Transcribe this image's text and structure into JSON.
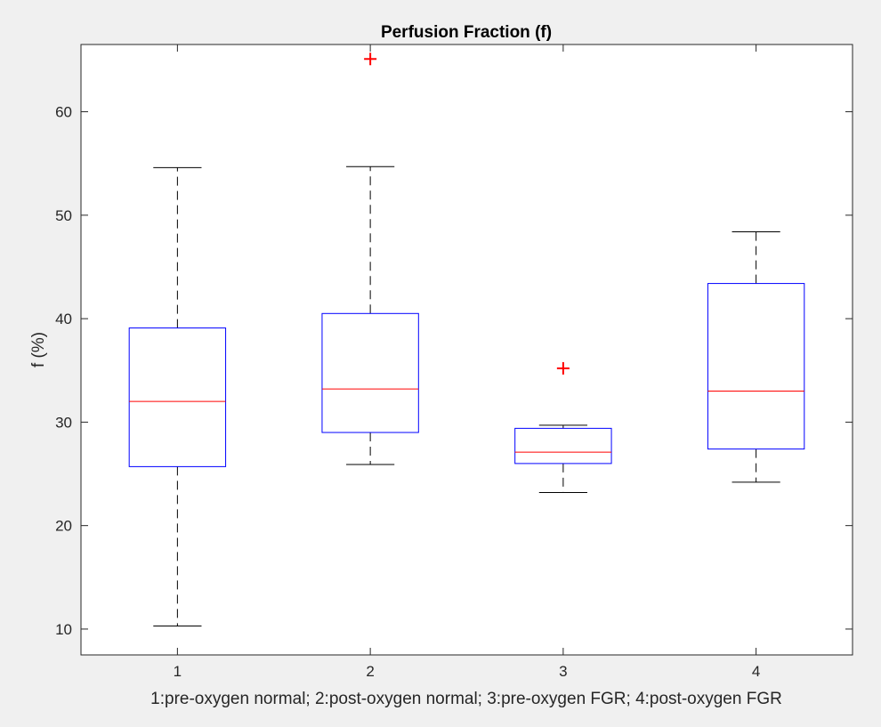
{
  "chart_data": {
    "type": "boxplot",
    "title": "Perfusion Fraction (f)",
    "xlabel": "1:pre-oxygen normal; 2:post-oxygen normal; 3:pre-oxygen FGR; 4:post-oxygen FGR",
    "ylabel": "f (%)",
    "xlim": [
      0.5,
      4.5
    ],
    "ylim": [
      7.5,
      66.5
    ],
    "x_ticks": [
      "1",
      "2",
      "3",
      "4"
    ],
    "y_ticks": [
      10,
      20,
      30,
      40,
      50,
      60
    ],
    "grid": false,
    "groups": [
      {
        "x": "1",
        "whisker_low": 10.3,
        "q1": 25.7,
        "median": 32.0,
        "q3": 39.1,
        "whisker_high": 54.6,
        "outliers": []
      },
      {
        "x": "2",
        "whisker_low": 25.9,
        "q1": 29.0,
        "median": 33.2,
        "q3": 40.5,
        "whisker_high": 54.7,
        "outliers": [
          65.1
        ]
      },
      {
        "x": "3",
        "whisker_low": 23.2,
        "q1": 26.0,
        "median": 27.1,
        "q3": 29.4,
        "whisker_high": 29.7,
        "outliers": [
          35.2
        ]
      },
      {
        "x": "4",
        "whisker_low": 24.2,
        "q1": 27.4,
        "median": 33.0,
        "q3": 43.4,
        "whisker_high": 48.4,
        "outliers": []
      }
    ],
    "colors": {
      "box": "#0000ff",
      "median": "#ff0000",
      "whisker": "#000000",
      "outlier": "#ff0000",
      "axes": "#262626",
      "background": "#ffffff",
      "figure": "#f0f0f0"
    }
  }
}
